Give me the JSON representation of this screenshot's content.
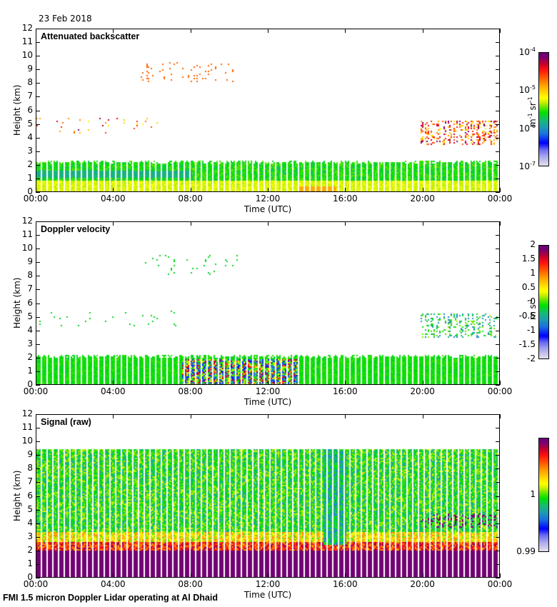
{
  "date_label": "23 Feb 2018",
  "footer": "FMI 1.5 micron Doppler Lidar operating at Al Dhaid",
  "chart_data": [
    {
      "type": "heatmap",
      "title": "Attenuated backscatter",
      "xlabel": "Time (UTC)",
      "ylabel": "Height (km)",
      "xticks": [
        "00:00",
        "04:00",
        "08:00",
        "12:00",
        "16:00",
        "20:00",
        "00:00"
      ],
      "yticks": [
        "0",
        "1",
        "2",
        "3",
        "4",
        "5",
        "6",
        "7",
        "8",
        "9",
        "10",
        "11",
        "12"
      ],
      "xlim_hours": [
        0,
        24
      ],
      "ylim_km": [
        0,
        12
      ],
      "colorbar": {
        "scale": "log",
        "range": [
          1e-07,
          0.0001
        ],
        "ticks": [
          {
            "base": "10",
            "exp": "-4",
            "value": 0.0001
          },
          {
            "base": "10",
            "exp": "-5",
            "value": 1e-05
          },
          {
            "base": "10",
            "exp": "-6",
            "value": 1e-06
          },
          {
            "base": "10",
            "exp": "-7",
            "value": 1e-07
          }
        ],
        "unit_parts": [
          {
            "t": "m"
          },
          {
            "sup": "-1"
          },
          {
            "t": " sr"
          },
          {
            "sup": "-1"
          }
        ]
      },
      "features": {
        "boundary_layer_top_km": 2.3,
        "cloud_layers": [
          {
            "time_hours": [
              5.2,
              10.5
            ],
            "height_km": [
              8.0,
              9.6
            ],
            "value": "~3e-5"
          },
          {
            "time_hours": [
              0.0,
              7.3
            ],
            "height_km": [
              4.5,
              5.7
            ],
            "value": "~1e-5 to 1e-4"
          },
          {
            "time_hours": [
              19.8,
              24.0
            ],
            "height_km": [
              3.5,
              6.2
            ],
            "value": "~1e-5 to 1e-4"
          }
        ]
      }
    },
    {
      "type": "heatmap",
      "title": "Doppler velocity",
      "xlabel": "Time (UTC)",
      "ylabel": "Height (km)",
      "xticks": [
        "00:00",
        "04:00",
        "08:00",
        "12:00",
        "16:00",
        "20:00",
        "00:00"
      ],
      "yticks": [
        "0",
        "1",
        "2",
        "3",
        "4",
        "5",
        "6",
        "7",
        "8",
        "9",
        "10",
        "11",
        "12"
      ],
      "xlim_hours": [
        0,
        24
      ],
      "ylim_km": [
        0,
        12
      ],
      "colorbar": {
        "scale": "linear",
        "range": [
          -2,
          2
        ],
        "ticks": [
          {
            "label": "2",
            "value": 2
          },
          {
            "label": "1.5",
            "value": 1.5
          },
          {
            "label": "1",
            "value": 1
          },
          {
            "label": "0.5",
            "value": 0.5
          },
          {
            "label": "0",
            "value": 0
          },
          {
            "label": "-0.5",
            "value": -0.5
          },
          {
            "label": "-1",
            "value": -1
          },
          {
            "label": "-1.5",
            "value": -1.5
          },
          {
            "label": "-2",
            "value": -2
          }
        ],
        "unit_parts": [
          {
            "t": "m s"
          },
          {
            "sup": "-1"
          }
        ]
      },
      "features": {
        "convective_mixing_hours": [
          7.5,
          13.5
        ],
        "boundary_layer_top_km": 2.2
      }
    },
    {
      "type": "heatmap",
      "title": "Signal (raw)",
      "xlabel": "Time (UTC)",
      "ylabel": "Height (km)",
      "xticks": [
        "00:00",
        "04:00",
        "08:00",
        "12:00",
        "16:00",
        "20:00",
        "00:00"
      ],
      "yticks": [
        "0",
        "1",
        "2",
        "3",
        "4",
        "5",
        "6",
        "7",
        "8",
        "9",
        "10",
        "11",
        "12"
      ],
      "xlim_hours": [
        0,
        24
      ],
      "ylim_km": [
        0,
        12
      ],
      "colorbar": {
        "scale": "linear",
        "range": [
          0.99,
          1.01
        ],
        "ticks": [
          {
            "label": "1",
            "value": 1.0
          },
          {
            "label": "0.99",
            "value": 0.99
          }
        ],
        "unit_parts": []
      },
      "features": {
        "max_range_km": 9.5,
        "saturated_below_km": 2.1
      }
    }
  ]
}
